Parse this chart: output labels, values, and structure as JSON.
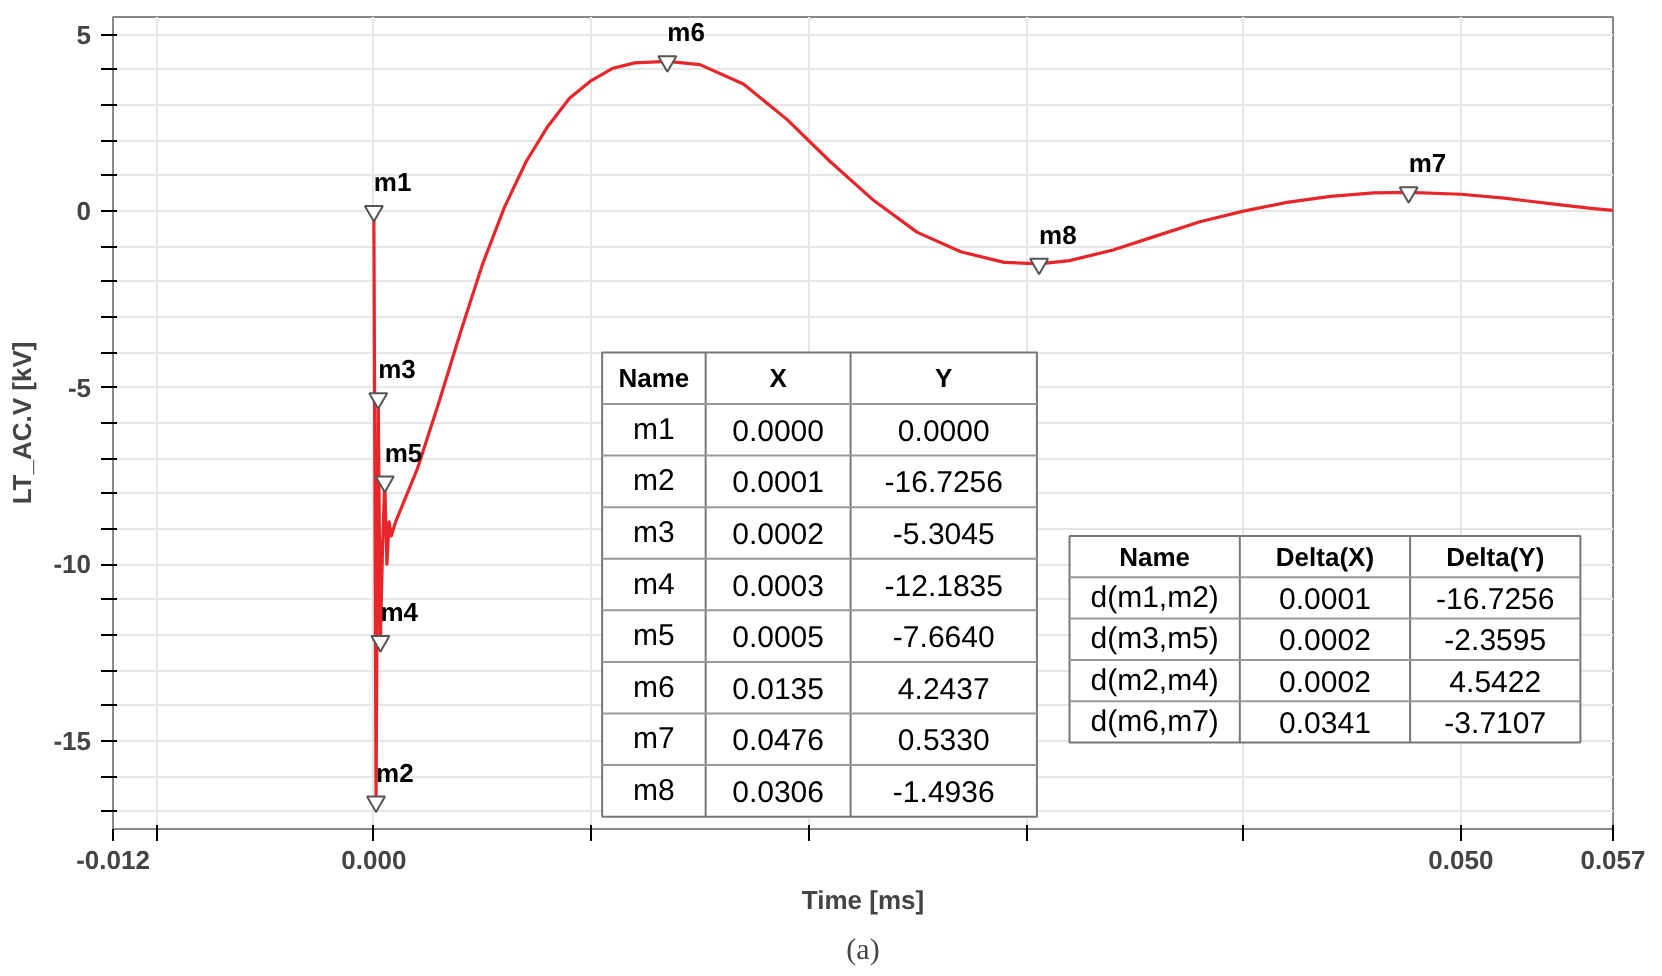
{
  "chart_data": {
    "type": "line",
    "xlabel": "Time [ms]",
    "ylabel": "LT_AC.V [kV]",
    "xlim": [
      -0.012,
      0.057
    ],
    "ylim": [
      -17.5,
      5.5
    ],
    "xticks": [
      -0.012,
      {
        "value": -0.01,
        "label": null
      },
      {
        "value": 0,
        "label": "0.000"
      },
      {
        "value": 0.01,
        "label": null
      },
      {
        "value": 0.02,
        "label": null
      },
      {
        "value": 0.03,
        "label": null
      },
      {
        "value": 0.04,
        "label": null
      },
      {
        "value": 0.05,
        "label": "0.050"
      },
      0.057
    ],
    "yticks": [
      {
        "value": -17,
        "label": null
      },
      {
        "value": -16,
        "label": null
      },
      -15,
      {
        "value": -14,
        "label": null
      },
      {
        "value": -13,
        "label": null
      },
      {
        "value": -12,
        "label": null
      },
      {
        "value": -11,
        "label": null
      },
      -10,
      {
        "value": -9,
        "label": null
      },
      {
        "value": -8,
        "label": null
      },
      {
        "value": -7,
        "label": null
      },
      {
        "value": -6,
        "label": null
      },
      -5,
      {
        "value": -4,
        "label": null
      },
      {
        "value": -3,
        "label": null
      },
      {
        "value": -2,
        "label": null
      },
      {
        "value": -1,
        "label": null
      },
      0,
      {
        "value": 1,
        "label": null
      },
      {
        "value": 2,
        "label": null
      },
      {
        "value": 3,
        "label": null
      },
      {
        "value": 4,
        "label": null
      },
      5
    ],
    "grid": true,
    "line_style": "solid",
    "series": [
      {
        "color": "#e8262a",
        "x": [
          0,
          5e-05,
          0.0001,
          0.00015,
          0.0002,
          0.00025,
          0.0003,
          0.0004,
          0.0005,
          0.0006,
          0.0007,
          0.0008,
          0.001,
          0.002,
          0.003,
          0.004,
          0.005,
          0.006,
          0.007,
          0.008,
          0.009,
          0.01,
          0.011,
          0.012,
          0.0135,
          0.015,
          0.017,
          0.019,
          0.021,
          0.023,
          0.025,
          0.027,
          0.029,
          0.0306,
          0.032,
          0.034,
          0.036,
          0.038,
          0.04,
          0.042,
          0.044,
          0.046,
          0.0476,
          0.05,
          0.052,
          0.054,
          0.056,
          0.057
        ],
        "values": [
          0,
          -8,
          -16.7256,
          -11,
          -5.3045,
          -9,
          -12.1835,
          -9.5,
          -7.664,
          -10,
          -8.8,
          -9.2,
          -8.8,
          -7.3,
          -5.4,
          -3.4,
          -1.5,
          0.1,
          1.4,
          2.4,
          3.2,
          3.7,
          4.05,
          4.2,
          4.2437,
          4.15,
          3.6,
          2.6,
          1.4,
          0.3,
          -0.6,
          -1.15,
          -1.45,
          -1.4936,
          -1.4,
          -1.1,
          -0.7,
          -0.3,
          0.0,
          0.25,
          0.42,
          0.52,
          0.533,
          0.48,
          0.37,
          0.22,
          0.08,
          0.02
        ]
      }
    ],
    "annotations": [
      {
        "text": "m1",
        "x": 0.0,
        "y": 0.0
      },
      {
        "text": "m2",
        "x": 0.0001,
        "y": -16.7256
      },
      {
        "text": "m3",
        "x": 0.0002,
        "y": -5.3045
      },
      {
        "text": "m4",
        "x": 0.0003,
        "y": -12.1835
      },
      {
        "text": "m5",
        "x": 0.0005,
        "y": -7.664
      },
      {
        "text": "m6",
        "x": 0.0135,
        "y": 4.2437
      },
      {
        "text": "m7",
        "x": 0.0476,
        "y": 0.533
      },
      {
        "text": "m8",
        "x": 0.0306,
        "y": -1.4936
      },
      "Name X Y\nm1 0.0000 0.0000\nm2 0.0001 -16.7256\nm3 0.0002 -5.3045\nm4 0.0003 -12.1835\nm5 0.0005 -7.6640\nm6 0.0135 4.2437\nm7 0.0476 0.5330\nm8 0.0306 -1.4936",
      "Name Delta(X) Delta(Y)\nd(m1,m2) 0.0001 -16.7256\nd(m3,m5) 0.0002 -2.3595\nd(m2,m4) 0.0002 4.5422\nd(m6,m7) 0.0341 -3.7107",
      "(a)"
    ]
  }
}
